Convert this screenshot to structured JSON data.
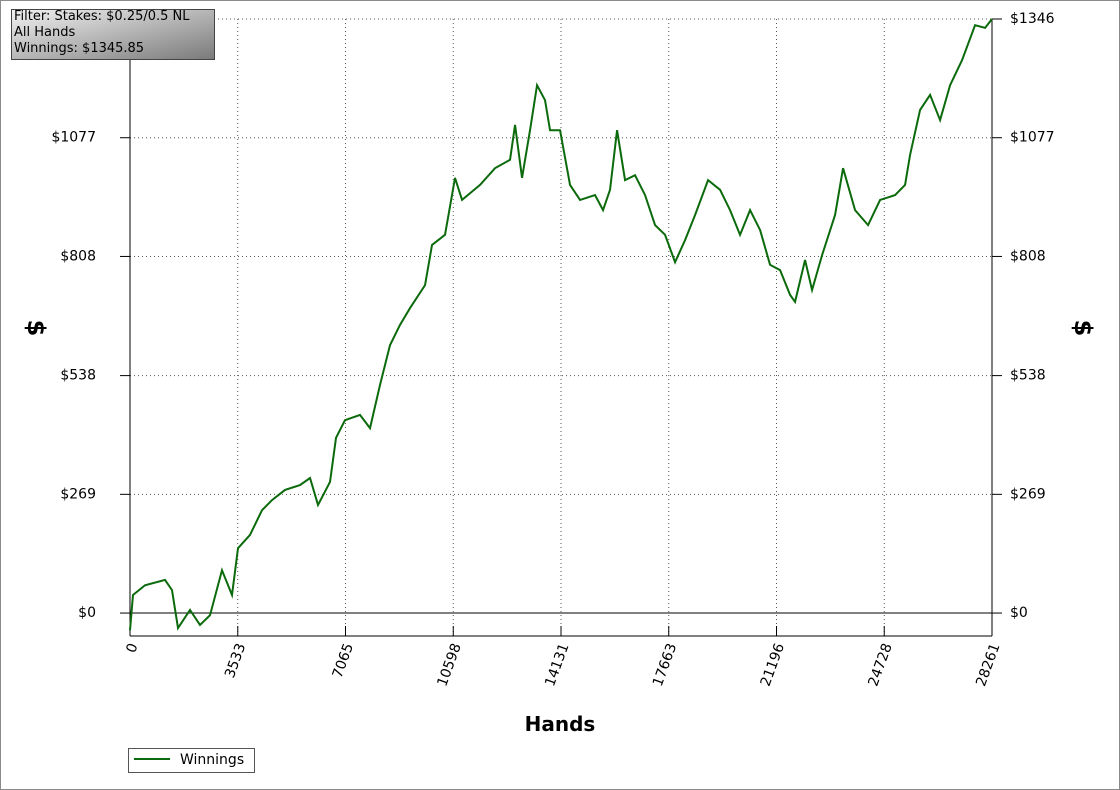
{
  "chart_data": {
    "type": "line",
    "annotations": [
      "Filter: Stakes: $0.25/0.5 NL",
      "All Hands",
      "Winnings: $1345.85"
    ],
    "xlabel": "Hands",
    "ylabel": "$",
    "y2label": "$",
    "x": [
      0,
      98,
      492,
      1147,
      1377,
      1574,
      1967,
      2295,
      2623,
      3016,
      3344,
      3541,
      3934,
      4328,
      4656,
      5082,
      5574,
      5902,
      6164,
      6557,
      6754,
      7049,
      7541,
      7869,
      8197,
      8525,
      8853,
      9181,
      9673,
      9902,
      10328,
      10656,
      10886,
      11476,
      11968,
      12460,
      12624,
      12853,
      13115,
      13345,
      13607,
      13771,
      14099,
      14427,
      14755,
      15247,
      15509,
      15738,
      15968,
      16230,
      16558,
      16886,
      17214,
      17542,
      17870,
      18198,
      18526,
      18952,
      19346,
      19673,
      20001,
      20329,
      20657,
      20985,
      21313,
      21641,
      21804,
      22132,
      22362,
      22690,
      23116,
      23378,
      23772,
      24198,
      24592,
      25083,
      25411,
      25575,
      25903,
      26231,
      26559,
      26887,
      27280,
      27706,
      28034,
      28261
    ],
    "series": [
      {
        "name": "Winnings",
        "color": "#0b6a0b",
        "values": [
          -39,
          41,
          63,
          75,
          52,
          -34,
          7,
          -27,
          -5,
          97,
          41,
          147,
          177,
          233,
          256,
          279,
          290,
          306,
          245,
          297,
          397,
          437,
          449,
          419,
          517,
          607,
          653,
          691,
          743,
          834,
          857,
          986,
          936,
          970,
          1008,
          1027,
          1106,
          986,
          1094,
          1196,
          1162,
          1094,
          1094,
          970,
          936,
          947,
          913,
          959,
          1094,
          981,
          992,
          947,
          879,
          857,
          795,
          845,
          902,
          981,
          959,
          913,
          857,
          913,
          868,
          789,
          777,
          721,
          705,
          800,
          732,
          811,
          902,
          1008,
          913,
          879,
          936,
          947,
          970,
          1038,
          1140,
          1174,
          1117,
          1196,
          1253,
          1332,
          1326,
          1346
        ]
      }
    ],
    "xlim": [
      0,
      28261
    ],
    "xticks": [
      0,
      3533,
      7065,
      10598,
      14131,
      17663,
      21196,
      24728,
      28261
    ],
    "ylim": [
      -52,
      1346
    ],
    "yticks": [
      {
        "value": 0,
        "label": "$0"
      },
      {
        "value": 269,
        "label": "$269"
      },
      {
        "value": 538,
        "label": "$538"
      },
      {
        "value": 808,
        "label": "$808"
      },
      {
        "value": 1077,
        "label": "$1077"
      },
      {
        "value": 1346,
        "label": "$1346"
      }
    ],
    "y2lim": [
      -52,
      1346
    ],
    "y2ticks": [
      {
        "value": 0,
        "label": "$0"
      },
      {
        "value": 269,
        "label": "$269"
      },
      {
        "value": 538,
        "label": "$538"
      },
      {
        "value": 808,
        "label": "$808"
      },
      {
        "value": 1077,
        "label": "$1077"
      },
      {
        "value": 1346,
        "label": "$1346"
      }
    ],
    "grid": true,
    "legend": "bottom-left"
  }
}
